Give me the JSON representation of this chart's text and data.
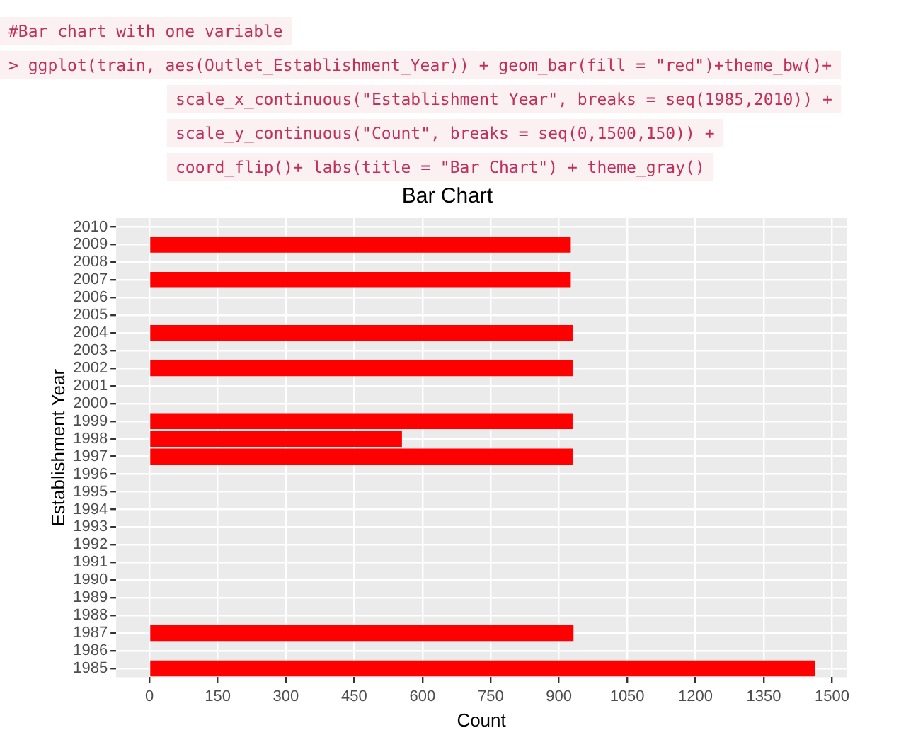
{
  "chart_data": {
    "type": "bar",
    "orientation": "horizontal",
    "title": "Bar Chart",
    "xlabel": "Count",
    "ylabel": "Establishment Year",
    "annotations": [
      "#Bar chart with one variable",
      "> ggplot(train, aes(Outlet_Establishment_Year)) + geom_bar(fill = \"red\")+theme_bw()+",
      "scale_x_continuous(\"Establishment Year\", breaks = seq(1985,2010)) +",
      "scale_y_continuous(\"Count\", breaks = seq(0,1500,150)) +",
      "coord_flip()+ labs(title = \"Bar Chart\") + theme_gray()"
    ],
    "categories": [
      "2010",
      "2009",
      "2008",
      "2007",
      "2006",
      "2005",
      "2004",
      "2003",
      "2002",
      "2001",
      "2000",
      "1999",
      "1998",
      "1997",
      "1996",
      "1995",
      "1994",
      "1993",
      "1992",
      "1991",
      "1990",
      "1989",
      "1988",
      "1987",
      "1986",
      "1985"
    ],
    "values": [
      null,
      926,
      null,
      926,
      null,
      null,
      930,
      null,
      930,
      null,
      null,
      930,
      555,
      930,
      null,
      null,
      null,
      null,
      null,
      null,
      null,
      null,
      null,
      932,
      null,
      1463
    ],
    "color": "#ff0000",
    "xlim": [
      -73,
      1532
    ],
    "xticks": [
      0,
      150,
      300,
      450,
      600,
      750,
      900,
      1050,
      1200,
      1350,
      1500
    ],
    "grid": true
  }
}
